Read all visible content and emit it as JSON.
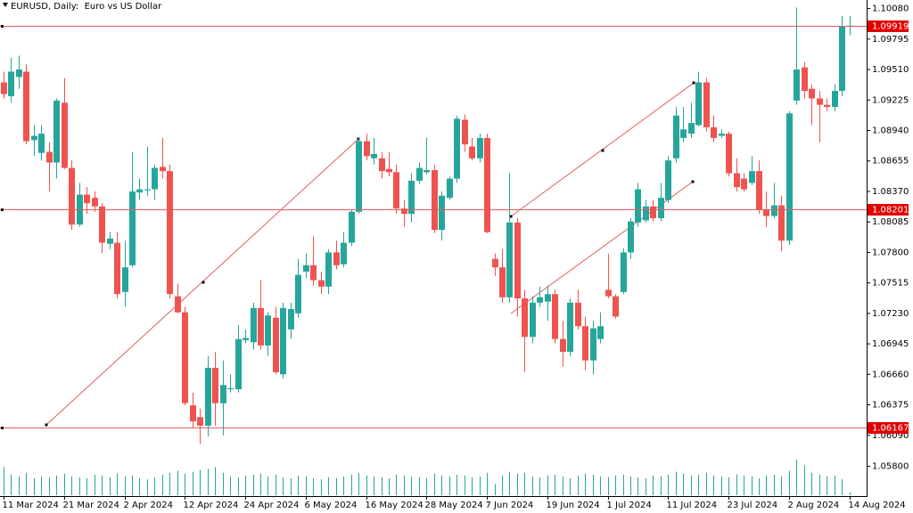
{
  "chart_data": {
    "type": "candlestick",
    "title": "EURUSD, Daily:  Euro vs US Dollar",
    "up_color": "#26a69a",
    "down_color": "#ef5350",
    "line_color": "#e06060",
    "categories": [
      "11 Mar 2024",
      null,
      null,
      null,
      null,
      null,
      null,
      null,
      "21 Mar 2024",
      null,
      null,
      null,
      null,
      null,
      null,
      null,
      "2 Apr 2024",
      null,
      null,
      null,
      null,
      null,
      null,
      null,
      "12 Apr 2024",
      null,
      null,
      null,
      null,
      null,
      null,
      null,
      "24 Apr 2024",
      null,
      null,
      null,
      null,
      null,
      null,
      null,
      "6 May 2024",
      null,
      null,
      null,
      null,
      null,
      null,
      null,
      "16 May 2024",
      null,
      null,
      null,
      null,
      null,
      null,
      null,
      "28 May 2024",
      null,
      null,
      null,
      null,
      null,
      null,
      null,
      "7 Jun 2024",
      null,
      null,
      null,
      null,
      null,
      null,
      null,
      "19 Jun 2024",
      null,
      null,
      null,
      null,
      null,
      null,
      null,
      "1 Jul 2024",
      null,
      null,
      null,
      null,
      null,
      null,
      null,
      "11 Jul 2024",
      null,
      null,
      null,
      null,
      null,
      null,
      null,
      "23 Jul 2024",
      null,
      null,
      null,
      null,
      null,
      null,
      null,
      "2 Aug 2024",
      null,
      null,
      null,
      null,
      null,
      null,
      null,
      "14 Aug 2024"
    ],
    "open": [
      1.0939,
      1.0926,
      1.0944,
      1.0949,
      1.0885,
      1.0873,
      1.0874,
      1.0864,
      1.092,
      1.0859,
      1.0806,
      1.0834,
      1.0831,
      1.0823,
      1.0788,
      1.0789,
      1.0743,
      1.0768,
      1.0836,
      1.0838,
      1.0839,
      1.086,
      1.0856,
      1.0739,
      1.0724,
      1.0637,
      1.0626,
      1.0618,
      1.0672,
      1.0639,
      1.0652,
      1.0652,
      1.0698,
      1.0696,
      1.0728,
      1.0693,
      1.0719,
      1.0666,
      1.0708,
      1.0723,
      1.0762,
      1.0768,
      1.0754,
      1.0748,
      1.078,
      1.0769,
      1.0789,
      1.0818,
      1.0884,
      1.0868,
      1.0868,
      1.0858,
      1.0855,
      1.0821,
      1.0816,
      1.0847,
      1.0855,
      1.0857,
      1.0801,
      1.0831,
      1.0849,
      1.0904,
      1.0879,
      1.0868,
      1.0887,
      1.0774,
      1.0766,
      1.0738,
      1.0808,
      1.0737,
      1.0701,
      1.0733,
      1.0734,
      1.0741,
      1.0699,
      1.0687,
      1.0733,
      1.0711,
      1.0679,
      1.0699,
      1.0745,
      1.0739,
      1.0743,
      1.078,
      1.0808,
      1.081,
      1.0823,
      1.0812,
      1.0829,
      1.0868,
      1.0887,
      1.0891,
      1.0899,
      1.0939,
      1.0897,
      1.0889,
      1.0891,
      1.0854,
      1.0849,
      1.0845,
      1.0856,
      1.082,
      1.0814,
      1.0824,
      1.0791,
      1.0922,
      1.0953,
      1.0933,
      1.0924,
      1.0918,
      1.0916,
      1.0931,
      1.0991
    ],
    "high": [
      1.0949,
      1.0962,
      1.0964,
      1.0956,
      1.0899,
      1.0899,
      1.0883,
      1.0924,
      1.0943,
      1.0866,
      1.0845,
      1.0841,
      1.0837,
      1.0826,
      1.0799,
      1.0799,
      1.0791,
      1.0874,
      1.0849,
      1.0879,
      1.0862,
      1.0887,
      1.0862,
      1.0751,
      1.0729,
      1.0649,
      1.0634,
      1.0683,
      1.0687,
      1.0679,
      1.0666,
      1.0712,
      1.0708,
      1.0733,
      1.0754,
      1.0724,
      1.0729,
      1.0733,
      1.0733,
      1.0774,
      1.0779,
      1.0795,
      1.0762,
      1.0783,
      1.0791,
      1.0799,
      1.082,
      1.0887,
      1.0891,
      1.0887,
      1.0874,
      1.0874,
      1.0862,
      1.0829,
      1.0854,
      1.0864,
      1.0887,
      1.0862,
      1.0837,
      1.0851,
      1.0908,
      1.0909,
      1.0887,
      1.0891,
      1.0891,
      1.0779,
      1.0783,
      1.0854,
      1.0812,
      1.0745,
      1.0739,
      1.0748,
      1.0749,
      1.0745,
      1.0716,
      1.0737,
      1.0745,
      1.072,
      1.0716,
      1.0724,
      1.0779,
      1.0741,
      1.0784,
      1.0812,
      1.0845,
      1.0829,
      1.0829,
      1.0845,
      1.087,
      1.0916,
      1.0916,
      1.092,
      1.0949,
      1.0943,
      1.0908,
      1.0895,
      1.0893,
      1.0868,
      1.0854,
      1.087,
      1.0866,
      1.0837,
      1.0845,
      1.0833,
      1.0912,
      1.1009,
      1.0958,
      1.0937,
      1.0931,
      1.0924,
      1.0937,
      1.1001,
      1.1001
    ],
    "low": [
      1.0924,
      1.092,
      1.0933,
      1.0881,
      1.087,
      1.0866,
      1.0837,
      1.0849,
      1.0858,
      1.0801,
      1.0804,
      1.0816,
      1.0818,
      1.0779,
      1.0783,
      1.0737,
      1.0729,
      1.0766,
      1.0829,
      1.0833,
      1.0829,
      1.0849,
      1.0737,
      1.0723,
      1.0637,
      1.0616,
      1.0601,
      1.0608,
      1.0618,
      1.0609,
      1.0649,
      1.0649,
      1.0695,
      1.0689,
      1.0689,
      1.0683,
      1.0666,
      1.0662,
      1.0699,
      1.0719,
      1.0756,
      1.0749,
      1.0741,
      1.0741,
      1.0764,
      1.0766,
      1.0786,
      1.0816,
      1.0866,
      1.0862,
      1.0849,
      1.0851,
      1.0816,
      1.0804,
      1.0808,
      1.0844,
      1.0853,
      1.0798,
      1.0791,
      1.0829,
      1.0845,
      1.0874,
      1.0866,
      1.0864,
      1.0798,
      1.0758,
      1.0733,
      1.0733,
      1.072,
      1.0668,
      1.0695,
      1.0729,
      1.0716,
      1.0695,
      1.0673,
      1.0683,
      1.0708,
      1.067,
      1.0666,
      1.0695,
      1.0737,
      1.0718,
      1.0741,
      1.0774,
      1.0804,
      1.0808,
      1.0809,
      1.0809,
      1.0826,
      1.0864,
      1.0883,
      1.0887,
      1.0898,
      1.0893,
      1.0883,
      1.0887,
      1.0851,
      1.0837,
      1.0837,
      1.0843,
      1.0816,
      1.0804,
      1.0812,
      1.0781,
      1.0787,
      1.0918,
      1.0924,
      1.0899,
      1.0883,
      1.0912,
      1.0912,
      1.0926,
      1.0983
    ],
    "close": [
      1.0928,
      1.0949,
      1.0951,
      1.0884,
      1.0889,
      1.0891,
      1.0864,
      1.0922,
      1.0859,
      1.0806,
      1.0834,
      1.0826,
      1.0823,
      1.0789,
      1.0793,
      1.0741,
      1.0766,
      1.0837,
      1.0839,
      1.0839,
      1.0859,
      1.0856,
      1.0741,
      1.0724,
      1.0639,
      1.0622,
      1.0618,
      1.0672,
      1.0639,
      1.0656,
      1.0653,
      1.0699,
      1.07,
      1.0728,
      1.0693,
      1.0721,
      1.0668,
      1.0728,
      1.0727,
      1.0759,
      1.0768,
      1.0754,
      1.0748,
      1.078,
      1.0768,
      1.0789,
      1.0818,
      1.0884,
      1.087,
      1.0872,
      1.0856,
      1.0855,
      1.0821,
      1.0816,
      1.0847,
      1.0859,
      1.0857,
      1.0801,
      1.0833,
      1.0849,
      1.0905,
      1.0881,
      1.0868,
      1.0887,
      1.0799,
      1.0766,
      1.0738,
      1.0808,
      1.0737,
      1.0701,
      1.0733,
      1.0738,
      1.0741,
      1.0699,
      1.0687,
      1.0733,
      1.0711,
      1.0679,
      1.0709,
      1.0711,
      1.0739,
      1.072,
      1.078,
      1.0809,
      1.0839,
      1.0823,
      1.0812,
      1.0831,
      1.0866,
      1.0908,
      1.0895,
      1.0901,
      1.0939,
      1.0897,
      1.0887,
      1.0891,
      1.0854,
      1.0841,
      1.0839,
      1.0856,
      1.082,
      1.0814,
      1.0824,
      1.0791,
      1.091,
      1.0951,
      1.0931,
      1.0924,
      1.0918,
      1.0916,
      1.0931,
      1.0991,
      1.0992
    ],
    "volume": [
      30,
      22,
      20,
      24,
      18,
      20,
      19,
      21,
      23,
      20,
      19,
      18,
      22,
      21,
      19,
      23,
      20,
      21,
      18,
      17,
      19,
      22,
      24,
      26,
      23,
      25,
      27,
      28,
      30,
      24,
      20,
      19,
      21,
      22,
      23,
      20,
      22,
      19,
      18,
      21,
      20,
      18,
      17,
      19,
      18,
      20,
      22,
      24,
      21,
      20,
      19,
      18,
      22,
      21,
      20,
      19,
      18,
      23,
      21,
      20,
      22,
      21,
      19,
      20,
      24,
      12,
      21,
      25,
      23,
      24,
      20,
      19,
      21,
      22,
      20,
      18,
      21,
      23,
      22,
      20,
      19,
      21,
      22,
      20,
      19,
      18,
      21,
      20,
      22,
      25,
      23,
      21,
      22,
      24,
      21,
      20,
      19,
      22,
      21,
      20,
      18,
      21,
      22,
      20,
      26,
      38,
      32,
      24,
      22,
      20,
      21,
      17,
      3
    ],
    "ylim": [
      1.0553,
      1.1016
    ],
    "yticks": [
      {
        "value": 1.1008,
        "label": "1.10080"
      },
      {
        "value": 1.09795,
        "label": "1.09795"
      },
      {
        "value": 1.0951,
        "label": "1.09510"
      },
      {
        "value": 1.09225,
        "label": "1.09225"
      },
      {
        "value": 1.0894,
        "label": "1.08940"
      },
      {
        "value": 1.08655,
        "label": "1.08655"
      },
      {
        "value": 1.0837,
        "label": "1.08370"
      },
      {
        "value": 1.08085,
        "label": "1.08085"
      },
      {
        "value": 1.078,
        "label": "1.07800"
      },
      {
        "value": 1.07515,
        "label": "1.07515"
      },
      {
        "value": 1.0723,
        "label": "1.07230"
      },
      {
        "value": 1.06945,
        "label": "1.06945"
      },
      {
        "value": 1.0666,
        "label": "1.06660"
      },
      {
        "value": 1.06375,
        "label": "1.06375"
      },
      {
        "value": 1.0609,
        "label": "1.06090"
      },
      {
        "value": 1.058,
        "label": "1.05800"
      }
    ],
    "price_lines": [
      1.09919,
      1.08201,
      1.06167
    ]
  }
}
